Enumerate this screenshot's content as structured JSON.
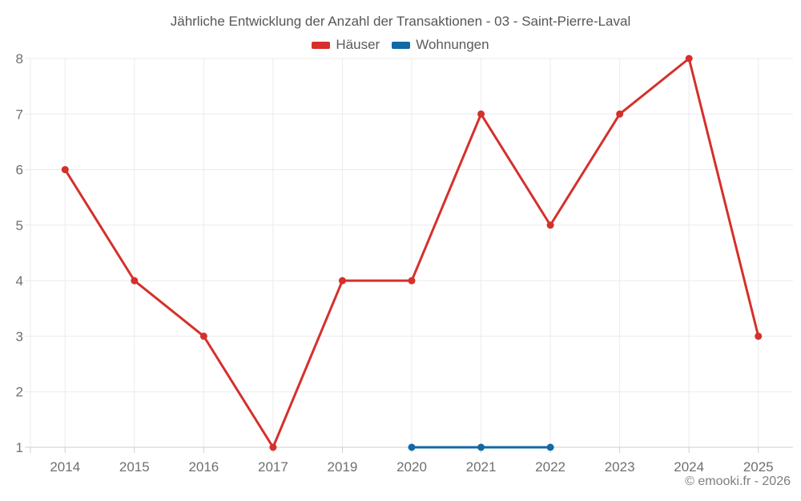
{
  "chart_data": {
    "type": "line",
    "title": "Jährliche Entwicklung der Anzahl der Transaktionen - 03 - Saint-Pierre-Laval",
    "categories": [
      "2014",
      "2015",
      "2016",
      "2017",
      "2019",
      "2020",
      "2021",
      "2022",
      "2023",
      "2024",
      "2025"
    ],
    "series": [
      {
        "name": "Häuser",
        "color": "#d5302b",
        "values": [
          6,
          4,
          3,
          1,
          4,
          4,
          7,
          5,
          7,
          8,
          3
        ]
      },
      {
        "name": "Wohnungen",
        "color": "#1169a6",
        "values": [
          null,
          null,
          null,
          null,
          null,
          1,
          1,
          1,
          null,
          null,
          null
        ]
      }
    ],
    "xlabel": "",
    "ylabel": "",
    "ylim": [
      1,
      8
    ],
    "y_ticks": [
      1,
      2,
      3,
      4,
      5,
      6,
      7,
      8
    ],
    "grid": true,
    "legend_position": "top",
    "point_radius": 4.5,
    "line_width": 3
  },
  "footer": {
    "credit": "© emooki.fr - 2026"
  },
  "theme": {
    "background": "#ffffff",
    "grid_color": "#ebebeb",
    "axis_color": "#cfcfcf",
    "tick_label_color": "#6f6f6f",
    "title_color": "#565656",
    "legend_text_color": "#5a5a5a",
    "footer_color": "#7e7e7e"
  }
}
